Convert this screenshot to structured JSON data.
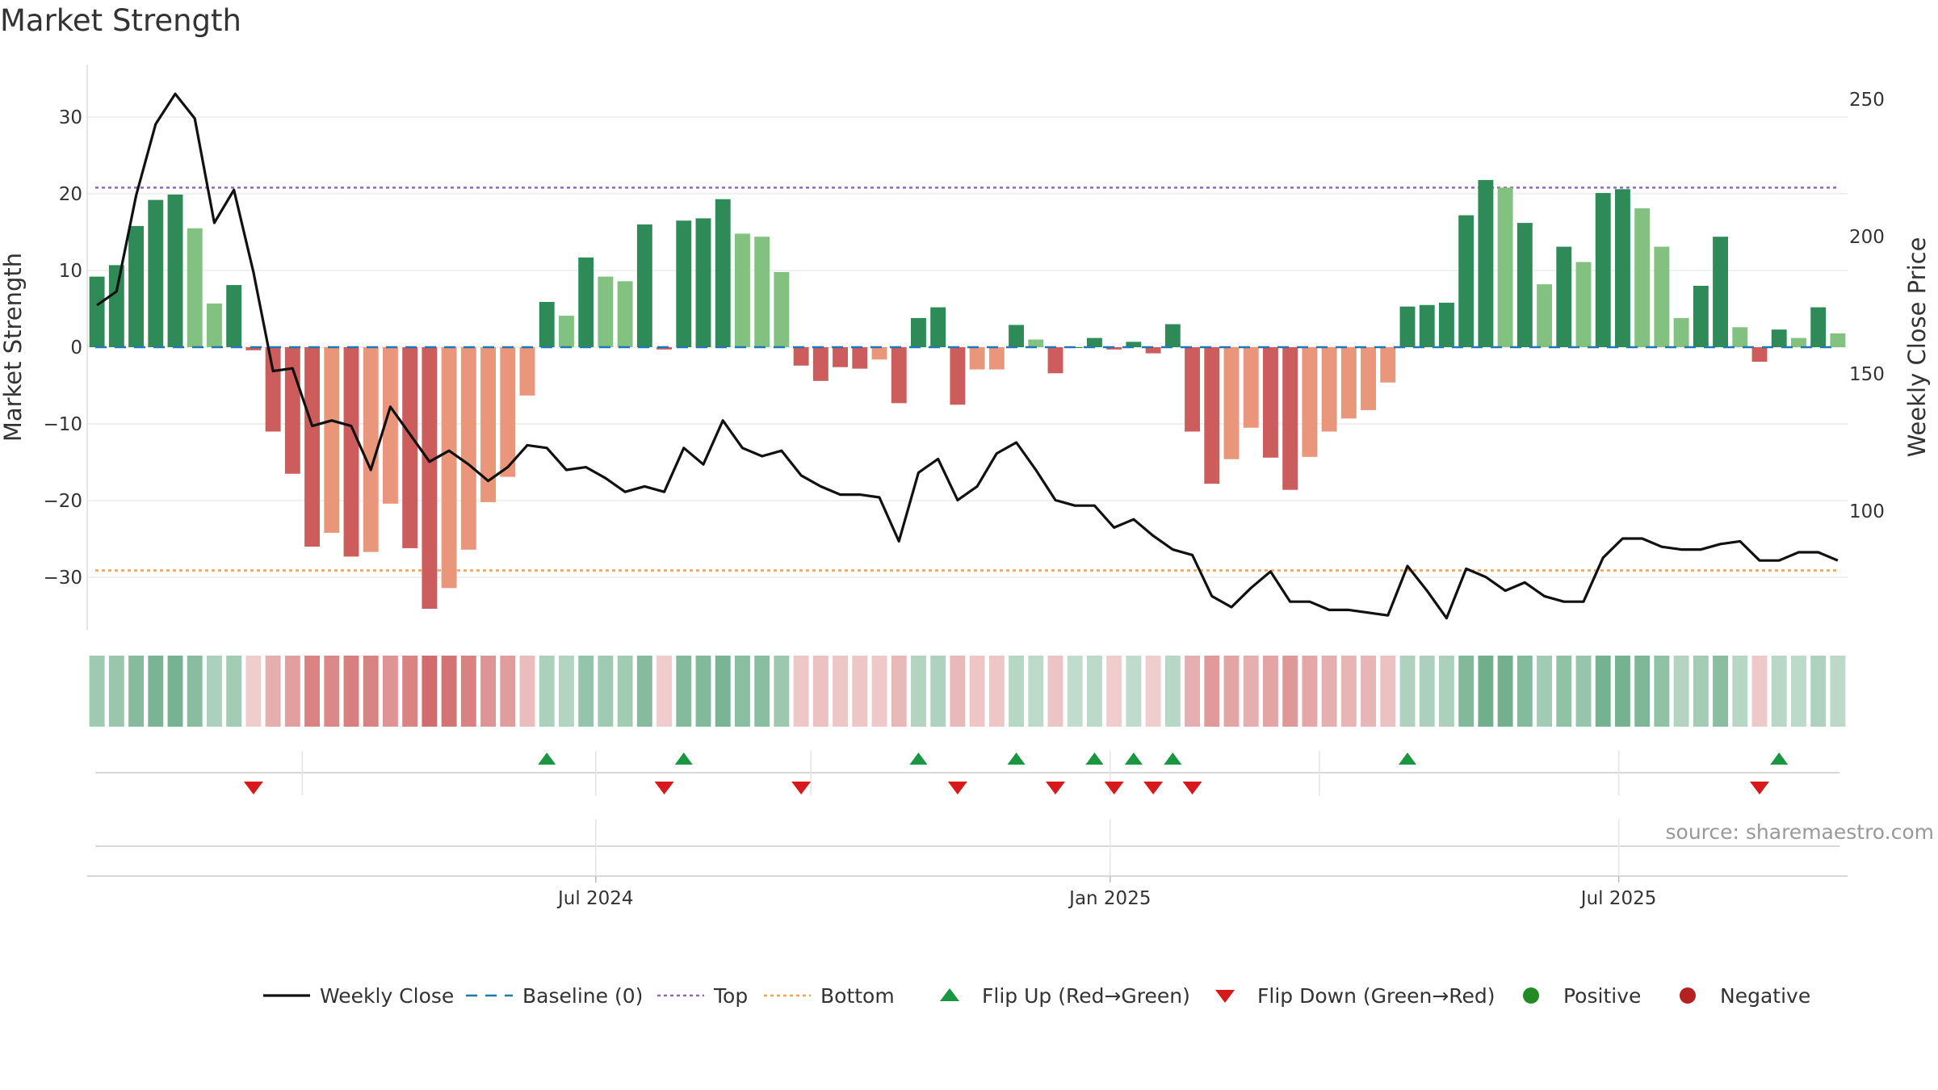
{
  "chart_data": {
    "type": "bar",
    "title": "Market Strength",
    "ylabel": "Market Strength",
    "y2label": "Weekly Close Price",
    "source": "source: sharemaestro.com",
    "ylim": [
      -36,
      36
    ],
    "y_ticks": [
      30,
      20,
      10,
      0,
      -10,
      -20,
      -30
    ],
    "y_tick_labels": [
      "30",
      "20",
      "10",
      "0",
      "−10",
      "−20",
      "−30"
    ],
    "y2lim": [
      64,
      264
    ],
    "y2_ticks": [
      250,
      200,
      150,
      100
    ],
    "y2_tick_labels": [
      "250",
      "200",
      "150",
      "100"
    ],
    "x_ticks": [
      {
        "week": 25.5,
        "label": "Jul 2024"
      },
      {
        "week": 51.8,
        "label": "Jan 2025"
      },
      {
        "week": 77.8,
        "label": "Jul 2025"
      }
    ],
    "grid": true,
    "top_line": 20.8,
    "bottom_line": -29.1,
    "baseline": 0,
    "colors": {
      "strong_positive": "#2e8b57",
      "weak_positive": "#82c17f",
      "strong_negative": "#cd5c5c",
      "weak_negative": "#e9967a",
      "line": "#111111",
      "baseline": "#1f77b4",
      "top": "#9467bd",
      "bottom": "#ff9f4a",
      "flip_up": "#1a9641",
      "flip_down": "#d7191c",
      "positive_dot": "#228b22",
      "negative_dot": "#b22222"
    },
    "strength": [
      9.2,
      10.7,
      15.8,
      19.2,
      19.9,
      15.5,
      5.7,
      8.1,
      -0.4,
      -11,
      -16.5,
      -26,
      -24.2,
      -27.3,
      -26.7,
      -20.4,
      -26.2,
      -34.1,
      -31.4,
      -26.4,
      -20.2,
      -16.9,
      -6.3,
      5.9,
      4.1,
      11.7,
      9.2,
      8.6,
      16,
      -0.3,
      16.5,
      16.8,
      19.3,
      14.8,
      14.4,
      9.8,
      -2.4,
      -4.4,
      -2.6,
      -2.8,
      -1.6,
      -7.3,
      3.8,
      5.2,
      -7.5,
      -2.9,
      -2.9,
      2.9,
      1,
      -3.4,
      0,
      1.2,
      -0.3,
      0.7,
      -0.8,
      3,
      -11,
      -17.8,
      -14.6,
      -10.5,
      -14.4,
      -18.6,
      -14.3,
      -11,
      -9.3,
      -8.2,
      -4.6,
      5.3,
      5.5,
      5.8,
      17.2,
      21.8,
      20.8,
      16.2,
      8.2,
      13.1,
      11.1,
      20.1,
      20.6,
      18.1,
      13.1,
      3.8,
      8,
      14.4,
      2.6,
      -1.9,
      2.3,
      1.2,
      5.2,
      1.8
    ],
    "strong": [
      1,
      1,
      1,
      1,
      1,
      0,
      0,
      1,
      1,
      1,
      1,
      1,
      0,
      1,
      0,
      0,
      1,
      1,
      0,
      0,
      0,
      0,
      0,
      1,
      0,
      1,
      0,
      0,
      1,
      1,
      1,
      1,
      1,
      0,
      0,
      0,
      1,
      1,
      1,
      1,
      0,
      1,
      1,
      1,
      1,
      0,
      0,
      1,
      0,
      1,
      1,
      1,
      1,
      1,
      1,
      1,
      1,
      1,
      0,
      0,
      1,
      1,
      0,
      0,
      0,
      0,
      0,
      1,
      1,
      1,
      1,
      1,
      0,
      1,
      0,
      1,
      0,
      1,
      1,
      0,
      0,
      0,
      1,
      1,
      0,
      1,
      1,
      0,
      1,
      0
    ],
    "weekly_close": [
      175,
      180,
      215,
      241,
      252,
      243,
      205,
      217,
      187,
      151,
      152,
      131,
      133,
      131,
      115,
      138,
      128,
      118,
      122,
      117,
      111,
      116,
      124,
      123,
      115,
      116,
      112,
      107,
      109,
      107,
      123,
      117,
      133,
      123,
      120,
      122,
      113,
      109,
      106,
      106,
      105,
      89,
      114,
      119,
      104,
      109,
      121,
      125,
      115,
      104,
      102,
      102,
      94,
      97,
      91,
      86,
      84,
      69,
      65,
      72,
      78,
      67,
      67,
      64,
      64,
      63,
      62,
      80,
      71,
      61,
      79,
      76,
      71,
      74,
      69,
      67,
      67,
      83,
      90,
      90,
      87,
      86,
      86,
      88,
      89,
      82,
      82,
      85,
      85,
      82
    ],
    "flip_up_weeks": [
      23,
      30,
      42,
      47,
      51,
      53,
      55,
      67,
      86
    ],
    "flip_down_weeks": [
      8,
      29,
      36,
      44,
      49,
      52,
      54,
      56,
      85
    ],
    "legend": [
      {
        "key": "line",
        "label": "Weekly Close"
      },
      {
        "key": "baseline",
        "label": "Baseline (0)"
      },
      {
        "key": "top",
        "label": "Top"
      },
      {
        "key": "bottom",
        "label": "Bottom"
      },
      {
        "key": "flip_up",
        "label": "Flip Up (Red→Green)"
      },
      {
        "key": "flip_down",
        "label": "Flip Down (Green→Red)"
      },
      {
        "key": "positive_dot",
        "label": "Positive"
      },
      {
        "key": "negative_dot",
        "label": "Negative"
      }
    ]
  }
}
